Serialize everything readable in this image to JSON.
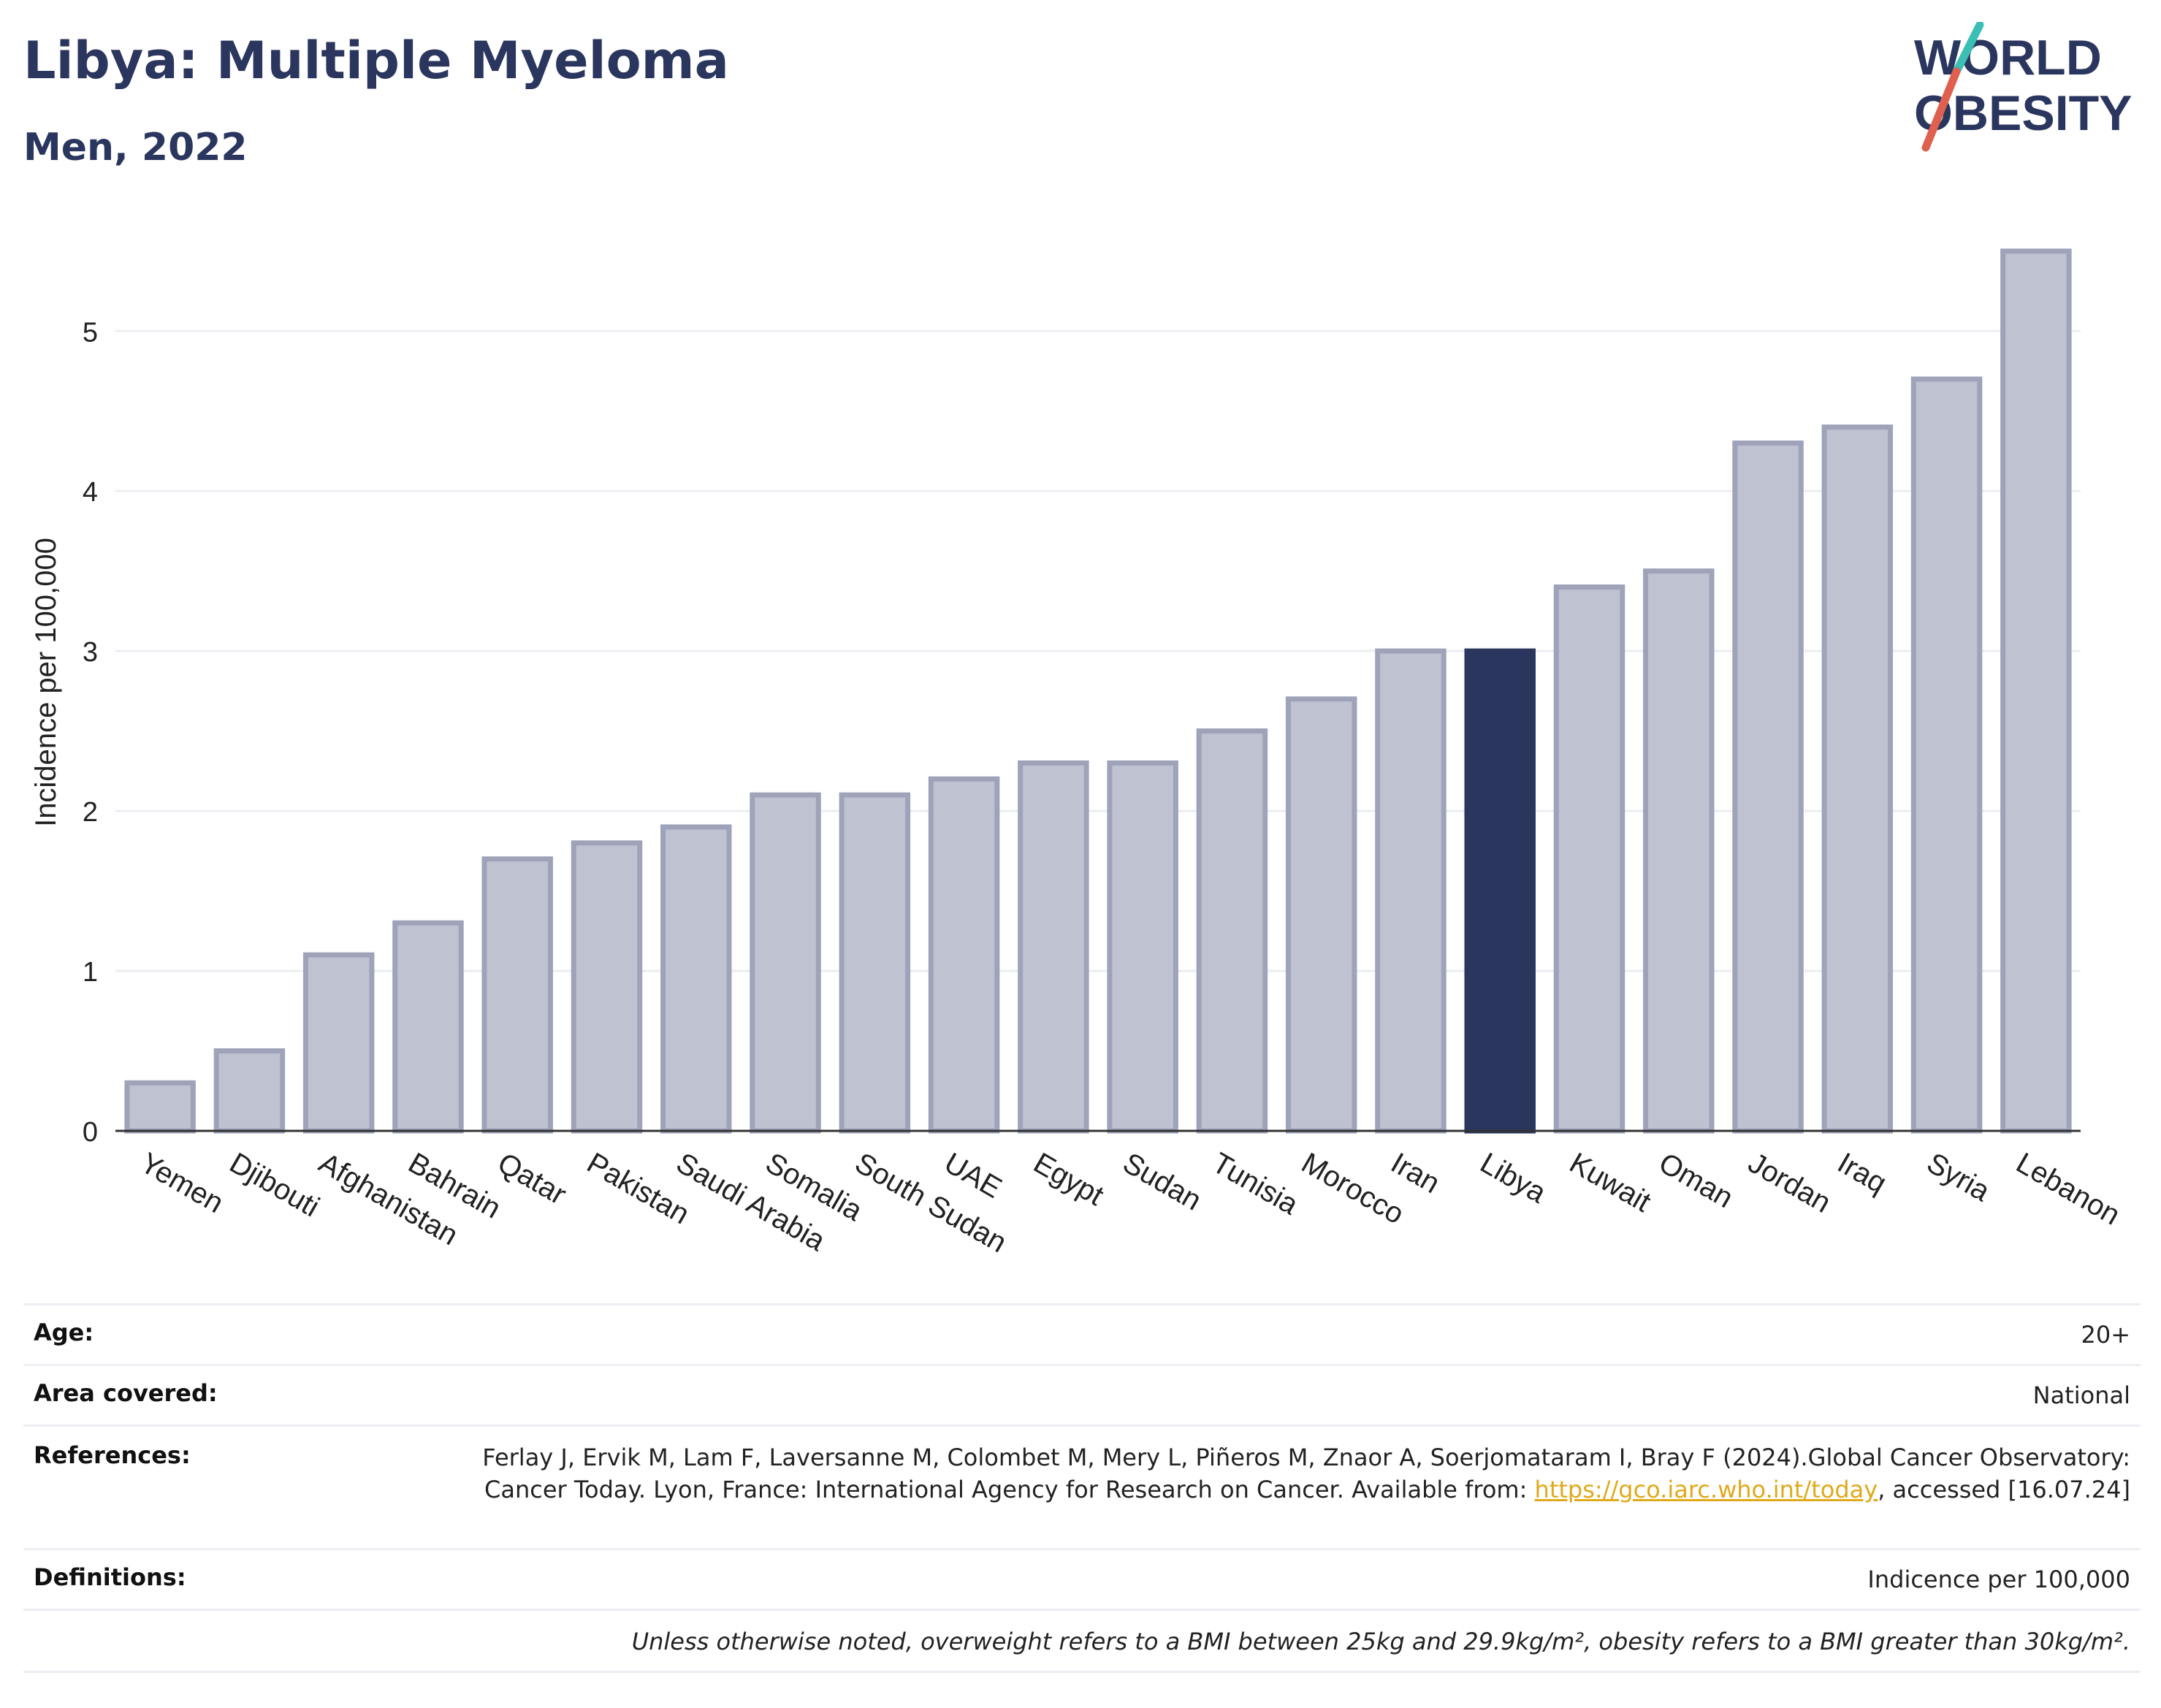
{
  "header": {
    "title": "Libya: Multiple Myeloma",
    "subtitle": "Men, 2022"
  },
  "logo": {
    "line1": "WORLD",
    "line2": "OBESITY",
    "text_color": "#2b365f",
    "slash_colors": [
      "#3bbfb4",
      "#e0604f"
    ]
  },
  "colors": {
    "highlight": "#2b365f",
    "bar": "#bfc3d1",
    "bar_edge": "#9ea3b9",
    "grid": "#ebedf2"
  },
  "chart_data": {
    "type": "bar",
    "ylabel": "Incidence per 100,000",
    "xlabel": "",
    "ylim": [
      0,
      5.7
    ],
    "yticks": [
      0,
      1,
      2,
      3,
      4,
      5
    ],
    "grid": true,
    "highlight": "Libya",
    "categories": [
      "Yemen",
      "Djibouti",
      "Afghanistan",
      "Bahrain",
      "Qatar",
      "Pakistan",
      "Saudi Arabia",
      "Somalia",
      "South Sudan",
      "UAE",
      "Egypt",
      "Sudan",
      "Tunisia",
      "Morocco",
      "Iran",
      "Libya",
      "Kuwait",
      "Oman",
      "Jordan",
      "Iraq",
      "Syria",
      "Lebanon"
    ],
    "values": [
      0.3,
      0.5,
      1.1,
      1.3,
      1.7,
      1.8,
      1.9,
      2.1,
      2.1,
      2.2,
      2.3,
      2.3,
      2.5,
      2.7,
      3.0,
      3.0,
      3.4,
      3.5,
      4.3,
      4.4,
      4.7,
      5.5
    ]
  },
  "info": {
    "age_label": "Age:",
    "age_value": "20+",
    "area_label": "Area covered:",
    "area_value": "National",
    "references_label": "References:",
    "references_text": "Ferlay J, Ervik M, Lam F, Laversanne M, Colombet M, Mery L, Piñeros M, Znaor A, Soerjomataram I, Bray F (2024).Global Cancer Observatory: Cancer Today. Lyon, France: International Agency for Research on Cancer. Available from:",
    "references_link": "https://gco.iarc.who.int/today",
    "references_suffix": ", accessed [16.07.24]",
    "definitions_label": "Definitions:",
    "definitions_value": "Indicence per 100,000",
    "note": "Unless otherwise noted, overweight refers to a BMI between 25kg and 29.9kg/m², obesity refers to a BMI greater than 30kg/m²."
  }
}
